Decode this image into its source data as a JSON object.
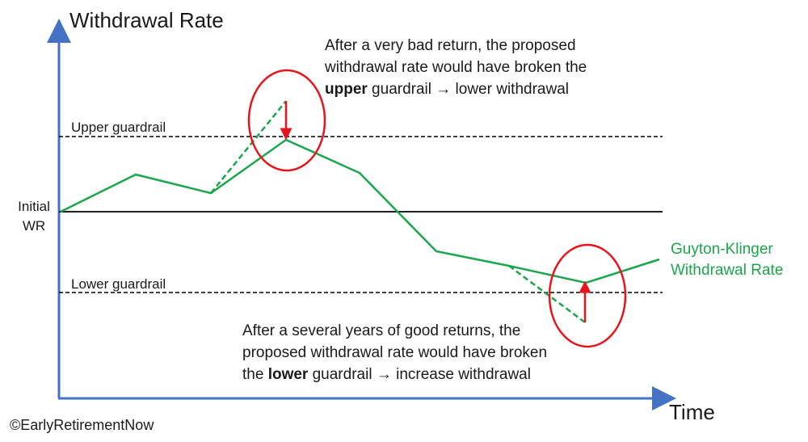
{
  "y_axis_title": "Withdrawal Rate",
  "x_axis_title": "Time",
  "copyright": "©EarlyRetirementNow",
  "labels": {
    "upper_guardrail": "Upper guardrail",
    "lower_guardrail": "Lower guardrail",
    "initial_wr_line1": "Initial",
    "initial_wr_line2": "WR",
    "series_line1": "Guyton-Klinger",
    "series_line2": "Withdrawal Rate"
  },
  "annotation_top": {
    "line1": "After a very bad return, the proposed",
    "line2": "withdrawal rate would have broken the",
    "line3_bold": "upper",
    "line3_rest": " guardrail → lower withdrawal"
  },
  "annotation_bottom": {
    "line1": "After a several years of good returns, the",
    "line2": "proposed withdrawal rate would have broken",
    "line3_pre": "the ",
    "line3_bold": "lower",
    "line3_rest": " guardrail → increase withdrawal"
  },
  "colors": {
    "axis": "#4472c4",
    "series": "#1aa64a",
    "highlight": "#e8141b",
    "guardrail": "#000000"
  }
}
